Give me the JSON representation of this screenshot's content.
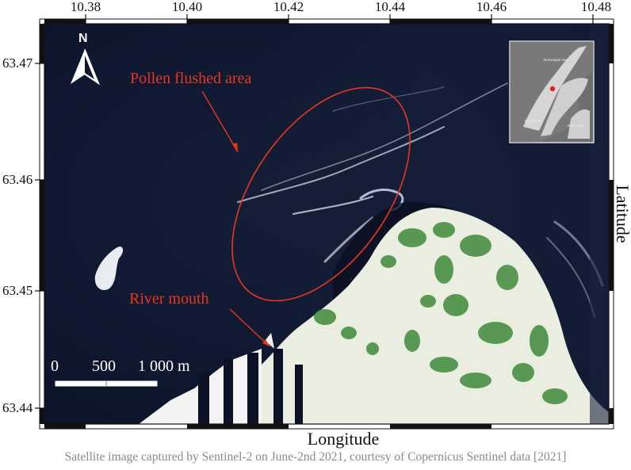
{
  "map": {
    "x_ticks": [
      "10.38",
      "10.40",
      "10.42",
      "10.44",
      "10.46",
      "10.48"
    ],
    "y_ticks": [
      "63.47",
      "63.46",
      "63.45",
      "63.44"
    ],
    "x_axis_title": "Longitude",
    "y_axis_title": "Latitude",
    "north_label": "N",
    "annotations": {
      "pollen": "Pollen flushed area",
      "river": "River mouth"
    },
    "scale_bar": {
      "labels": [
        "0",
        "500",
        "1 000 m"
      ]
    },
    "caption": "Satellite image captured by Sentinel-2 on June-2nd 2021, courtesy of Copernicus Sentinel data [2021]",
    "inset": {
      "labels": [
        "Norwegian Sea",
        "North Sea",
        "Baltic Sea"
      ]
    },
    "colors": {
      "annotation": "#e8361f",
      "water": "#101a30",
      "frame": "#111111"
    }
  }
}
